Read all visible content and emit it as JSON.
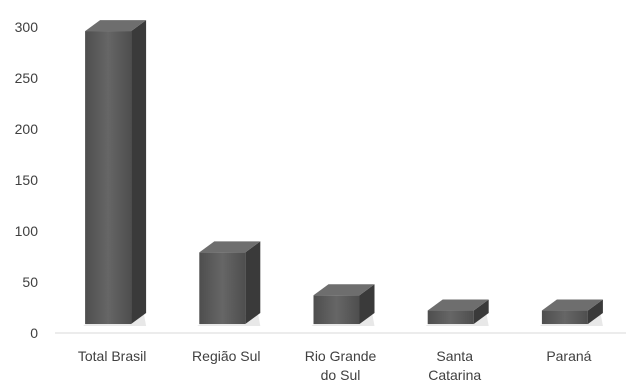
{
  "chart_data": {
    "type": "bar",
    "style": "3d-column",
    "categories": [
      [
        "Total Brasil"
      ],
      [
        "Região Sul"
      ],
      [
        "Rio Grande",
        "do Sul"
      ],
      [
        "Santa",
        "Catarina"
      ],
      [
        "Paraná"
      ]
    ],
    "values": [
      296,
      79,
      37,
      22,
      22
    ],
    "title": "",
    "xlabel": "",
    "ylabel": "",
    "ylim": [
      0,
      300
    ],
    "yticks": [
      0,
      50,
      100,
      150,
      200,
      250,
      300
    ],
    "grid": false,
    "legend": "none",
    "colors": {
      "front": "#5a5a5a",
      "side": "#3a3a3a",
      "top": "#6e6e6e",
      "axis": "#d9d9d9",
      "text": "#404040"
    }
  }
}
